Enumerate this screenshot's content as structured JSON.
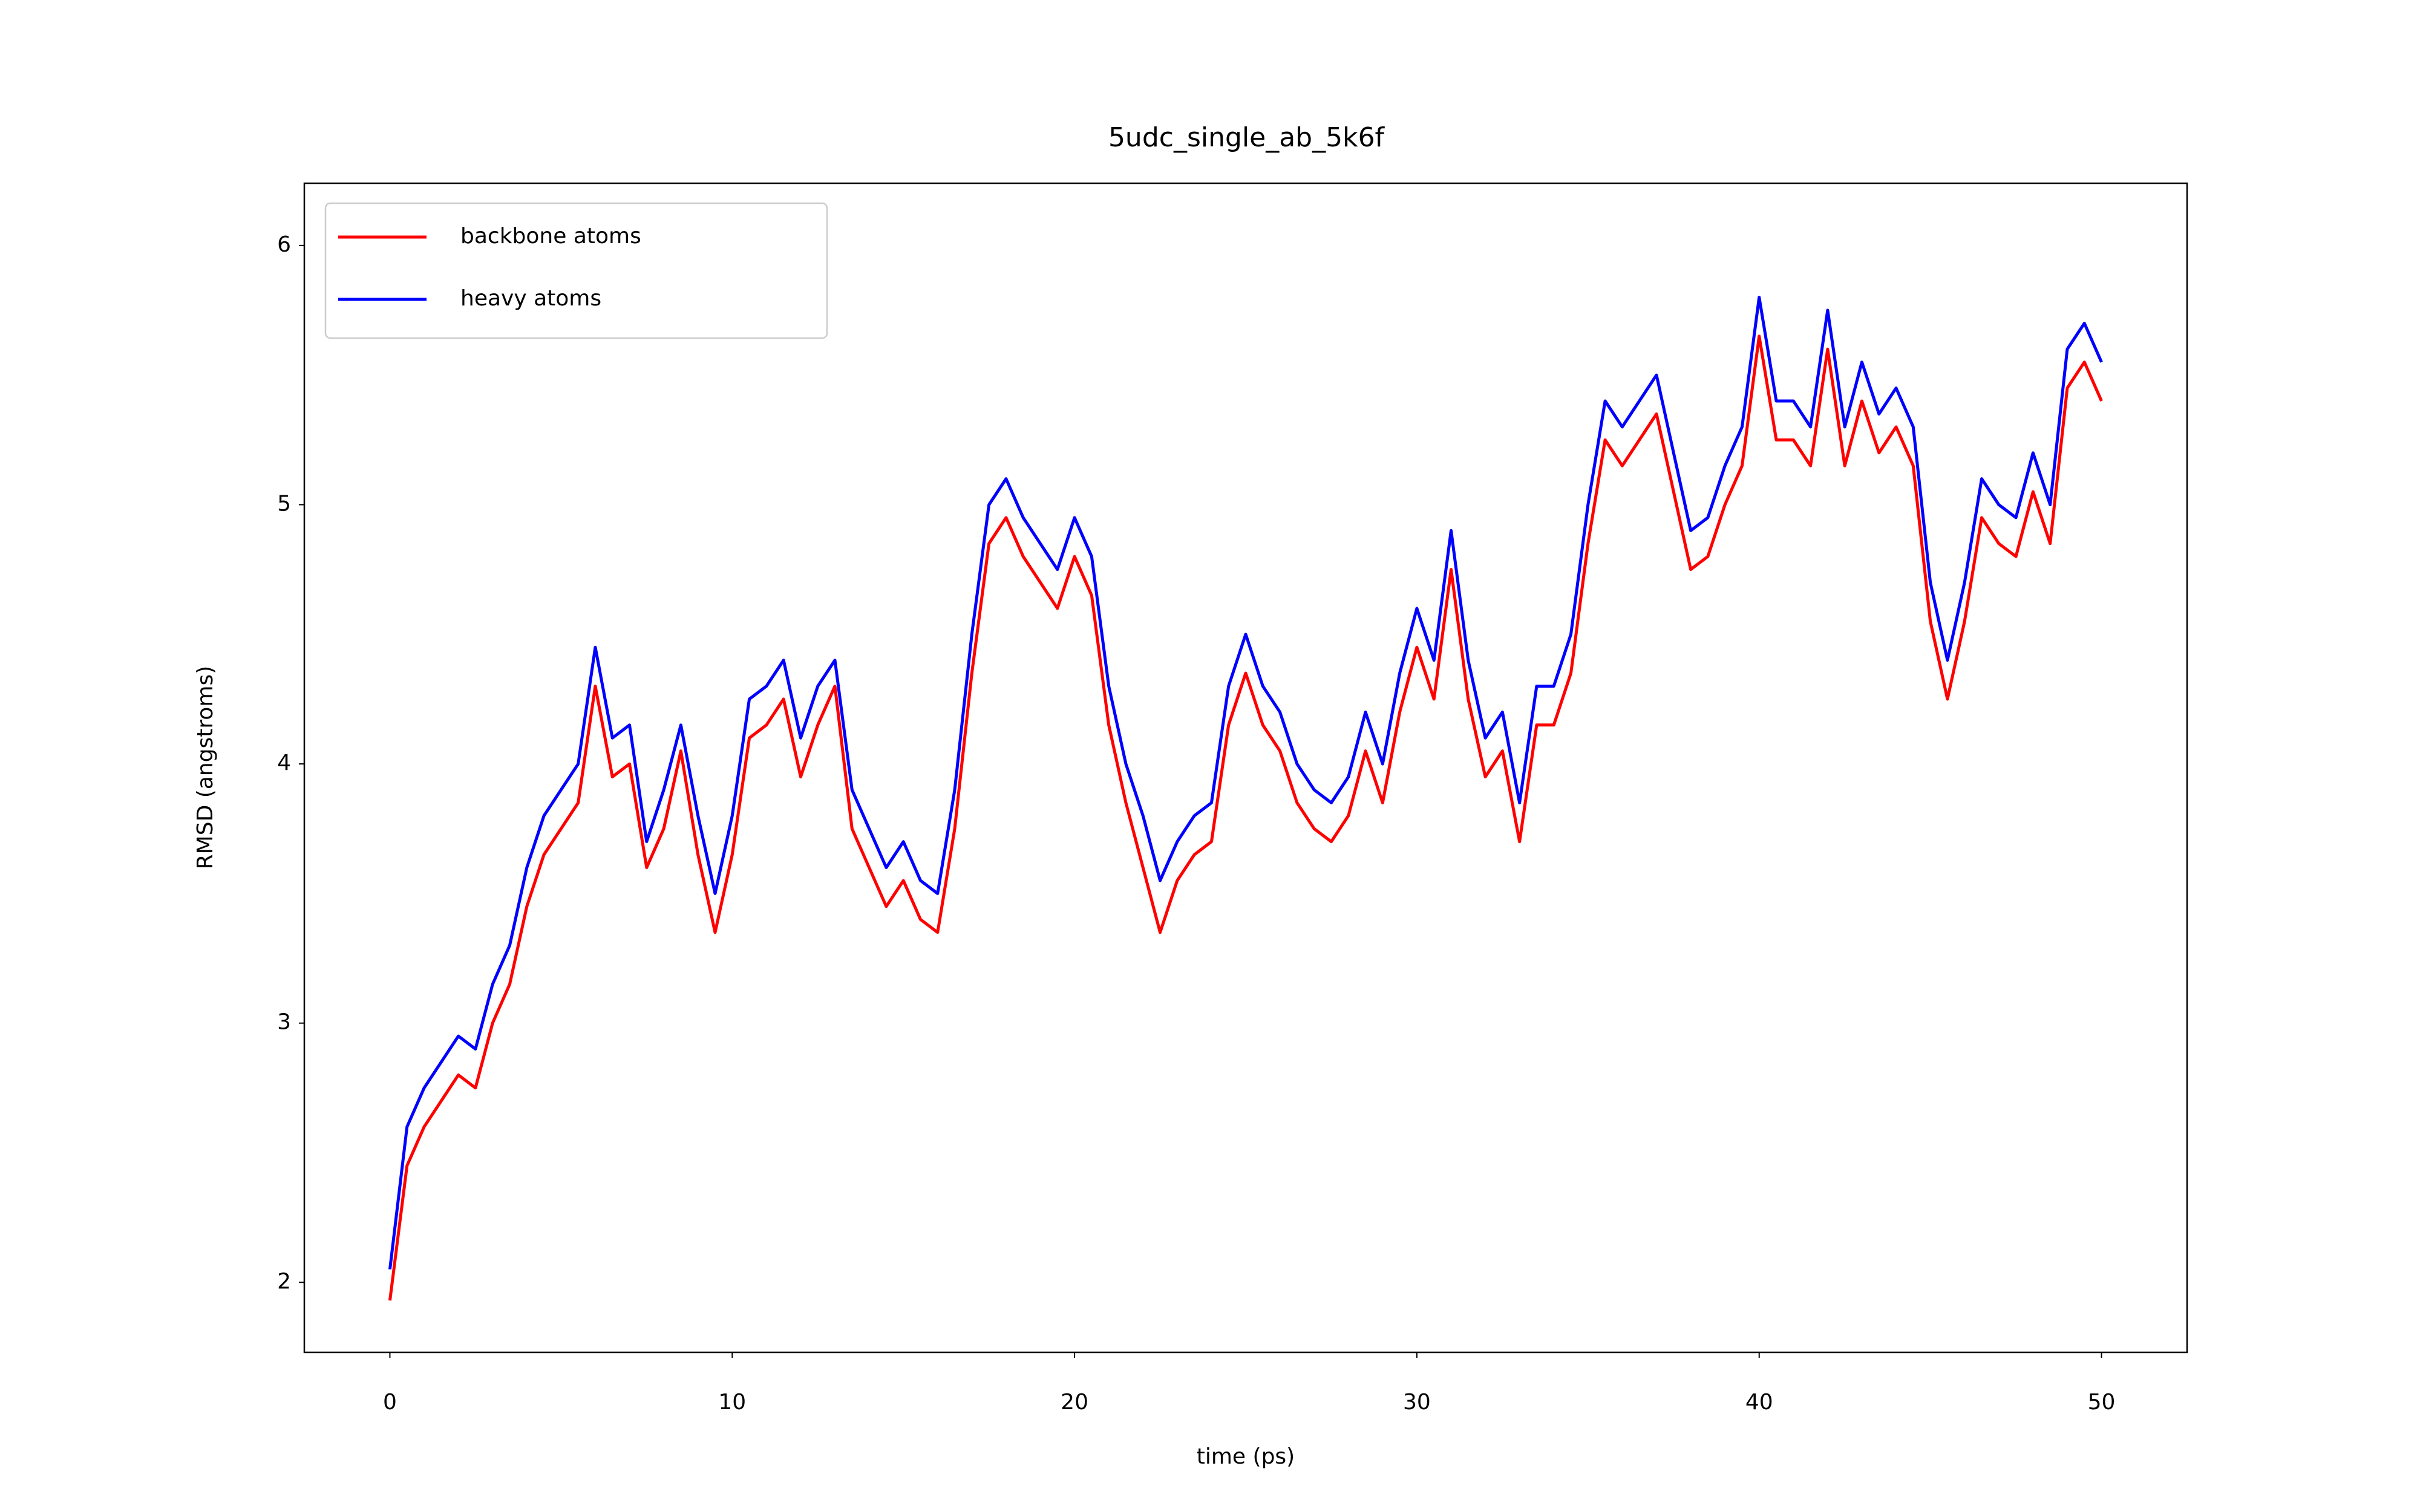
{
  "chart_data": {
    "type": "line",
    "title": "5udc_single_ab_5k6f",
    "x_label": "time (ps)",
    "y_label": "RMSD (angstroms)",
    "x": [
      0,
      0.5,
      1,
      1.5,
      2,
      2.5,
      3,
      3.5,
      4,
      4.5,
      5,
      5.5,
      6,
      6.5,
      7,
      7.5,
      8,
      8.5,
      9,
      9.5,
      10,
      10.5,
      11,
      11.5,
      12,
      12.5,
      13,
      13.5,
      14,
      14.5,
      15,
      15.5,
      16,
      16.5,
      17,
      17.5,
      18,
      18.5,
      19,
      19.5,
      20,
      20.5,
      21,
      21.5,
      22,
      22.5,
      23,
      23.5,
      24,
      24.5,
      25,
      25.5,
      26,
      26.5,
      27,
      27.5,
      28,
      28.5,
      29,
      29.5,
      30,
      30.5,
      31,
      31.5,
      32,
      32.5,
      33,
      33.5,
      34,
      34.5,
      35,
      35.5,
      36,
      36.5,
      37,
      37.5,
      38,
      38.5,
      39,
      39.5,
      40,
      40.5,
      41,
      41.5,
      42,
      42.5,
      43,
      43.5,
      44,
      44.5,
      45,
      45.5,
      46,
      46.5,
      47,
      47.5,
      48,
      48.5,
      49,
      49.5,
      50
    ],
    "series": [
      {
        "name": "backbone atoms",
        "color": "#ff0000",
        "values": [
          1.93,
          2.45,
          2.6,
          2.7,
          2.8,
          2.75,
          3.0,
          3.15,
          3.45,
          3.65,
          3.75,
          3.85,
          4.3,
          3.95,
          4.0,
          3.6,
          3.75,
          4.05,
          3.65,
          3.35,
          3.65,
          4.1,
          4.15,
          4.25,
          3.95,
          4.15,
          4.3,
          3.75,
          3.6,
          3.45,
          3.55,
          3.4,
          3.35,
          3.75,
          4.35,
          4.85,
          4.95,
          4.8,
          4.7,
          4.6,
          4.8,
          4.65,
          4.15,
          3.85,
          3.6,
          3.35,
          3.55,
          3.65,
          3.7,
          4.15,
          4.35,
          4.15,
          4.05,
          3.85,
          3.75,
          3.7,
          3.8,
          4.05,
          3.85,
          4.2,
          4.45,
          4.25,
          4.75,
          4.25,
          3.95,
          4.05,
          3.7,
          4.15,
          4.15,
          4.35,
          4.85,
          5.25,
          5.15,
          5.25,
          5.35,
          5.05,
          4.75,
          4.8,
          5.0,
          5.15,
          5.65,
          5.25,
          5.25,
          5.15,
          5.6,
          5.15,
          5.4,
          5.2,
          5.3,
          5.15,
          4.55,
          4.25,
          4.55,
          4.95,
          4.85,
          4.8,
          5.05,
          4.85,
          5.45,
          5.55,
          5.4
        ]
      },
      {
        "name": "heavy atoms",
        "color": "#0000ff",
        "values": [
          2.05,
          2.6,
          2.75,
          2.85,
          2.95,
          2.9,
          3.15,
          3.3,
          3.6,
          3.8,
          3.9,
          4.0,
          4.45,
          4.1,
          4.15,
          3.7,
          3.9,
          4.15,
          3.8,
          3.5,
          3.8,
          4.25,
          4.3,
          4.4,
          4.1,
          4.3,
          4.4,
          3.9,
          3.75,
          3.6,
          3.7,
          3.55,
          3.5,
          3.9,
          4.5,
          5.0,
          5.1,
          4.95,
          4.85,
          4.75,
          4.95,
          4.8,
          4.3,
          4.0,
          3.8,
          3.55,
          3.7,
          3.8,
          3.85,
          4.3,
          4.5,
          4.3,
          4.2,
          4.0,
          3.9,
          3.85,
          3.95,
          4.2,
          4.0,
          4.35,
          4.6,
          4.4,
          4.9,
          4.4,
          4.1,
          4.2,
          3.85,
          4.3,
          4.3,
          4.5,
          5.0,
          5.4,
          5.3,
          5.4,
          5.5,
          5.2,
          4.9,
          4.95,
          5.15,
          5.3,
          5.8,
          5.4,
          5.4,
          5.3,
          5.75,
          5.3,
          5.55,
          5.35,
          5.45,
          5.3,
          4.7,
          4.4,
          4.7,
          5.1,
          5.0,
          4.95,
          5.2,
          5.0,
          5.6,
          5.7,
          5.55
        ]
      }
    ],
    "xlim": [
      -2.5,
      52.5
    ],
    "ylim": [
      1.73,
      6.24
    ],
    "xticks": [
      0,
      10,
      20,
      30,
      40,
      50
    ],
    "yticks": [
      2,
      3,
      4,
      5,
      6
    ],
    "legend": "upper left",
    "grid": false
  }
}
